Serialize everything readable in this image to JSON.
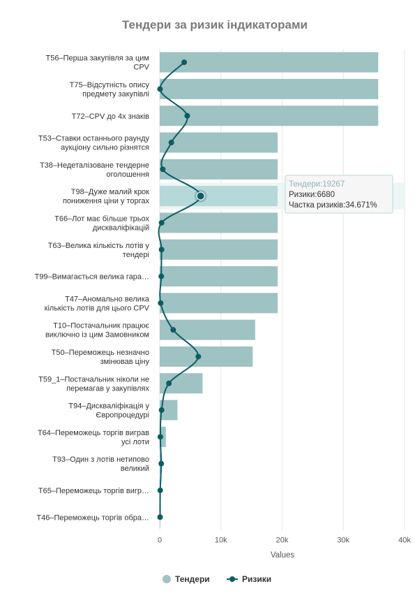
{
  "chart_data": {
    "type": "bar",
    "orientation": "horizontal",
    "title": "Тендери за ризик індикаторами",
    "xlabel": "Values",
    "xlim": [
      0,
      40000
    ],
    "ticks": [
      {
        "value": 0,
        "label": "0"
      },
      {
        "value": 10000,
        "label": "10k"
      },
      {
        "value": 20000,
        "label": "20k"
      },
      {
        "value": 30000,
        "label": "30k"
      },
      {
        "value": 40000,
        "label": "40k"
      }
    ],
    "grid": true,
    "legend_position": "bottom",
    "categories": [
      [
        "T56–Перша закупівля за цим",
        "CPV"
      ],
      [
        "T75–Відсутність опису",
        "предмету закупівлі"
      ],
      [
        "T72–CPV до 4х знаків"
      ],
      [
        "T53–Ставки останнього раунду",
        "аукціону сильно різнятся"
      ],
      [
        "T38–Недеталізоване тендерне",
        "оголошення"
      ],
      [
        "T98–Дуже малий крок",
        "пониження ціни у торгах"
      ],
      [
        "T66–Лот має більше трьох",
        "дискваліфікацій"
      ],
      [
        "T63–Велика кількість лотів у",
        "тендері"
      ],
      [
        "T99–Вимагається велика гара…"
      ],
      [
        "T47–Аномально велика",
        "кількість лотів для цього CPV"
      ],
      [
        "T10–Постачальник працює",
        "виключно із цим Замовником"
      ],
      [
        "T50–Переможець незначно",
        "змінював ціну"
      ],
      [
        "T59_1–Постачальник ніколи не",
        "перемагав у закупівлях"
      ],
      [
        "T94–Дискваліфікація у",
        "Європроцедурі"
      ],
      [
        "T64–Переможець торгів виграв",
        "усі лоти"
      ],
      [
        "T93–Один з лотів нетипово",
        "великий"
      ],
      [
        "T65–Переможець торгів вигр…"
      ],
      [
        "T46–Переможець торгів обра…"
      ]
    ],
    "series": [
      {
        "name": "Тендери",
        "kind": "bar",
        "color": "#9fc2c2",
        "values": [
          35700,
          35700,
          35700,
          19267,
          19267,
          19267,
          19267,
          19267,
          19267,
          19267,
          15600,
          15200,
          7000,
          2900,
          1000,
          200,
          150,
          100
        ]
      },
      {
        "name": "Ризики",
        "kind": "line",
        "color": "#0e5c63",
        "values": [
          4000,
          50,
          4500,
          1900,
          500,
          6680,
          300,
          300,
          250,
          150,
          2200,
          6300,
          1500,
          300,
          100,
          250,
          80,
          60
        ]
      }
    ],
    "highlighted_index": 5,
    "tooltip": {
      "line1_label": "Тендери:",
      "line1_value": "19267",
      "line2_label": "Ризики:",
      "line2_value": "6680",
      "line3_label": "Частка ризиків:",
      "line3_value": "34.671%"
    }
  }
}
